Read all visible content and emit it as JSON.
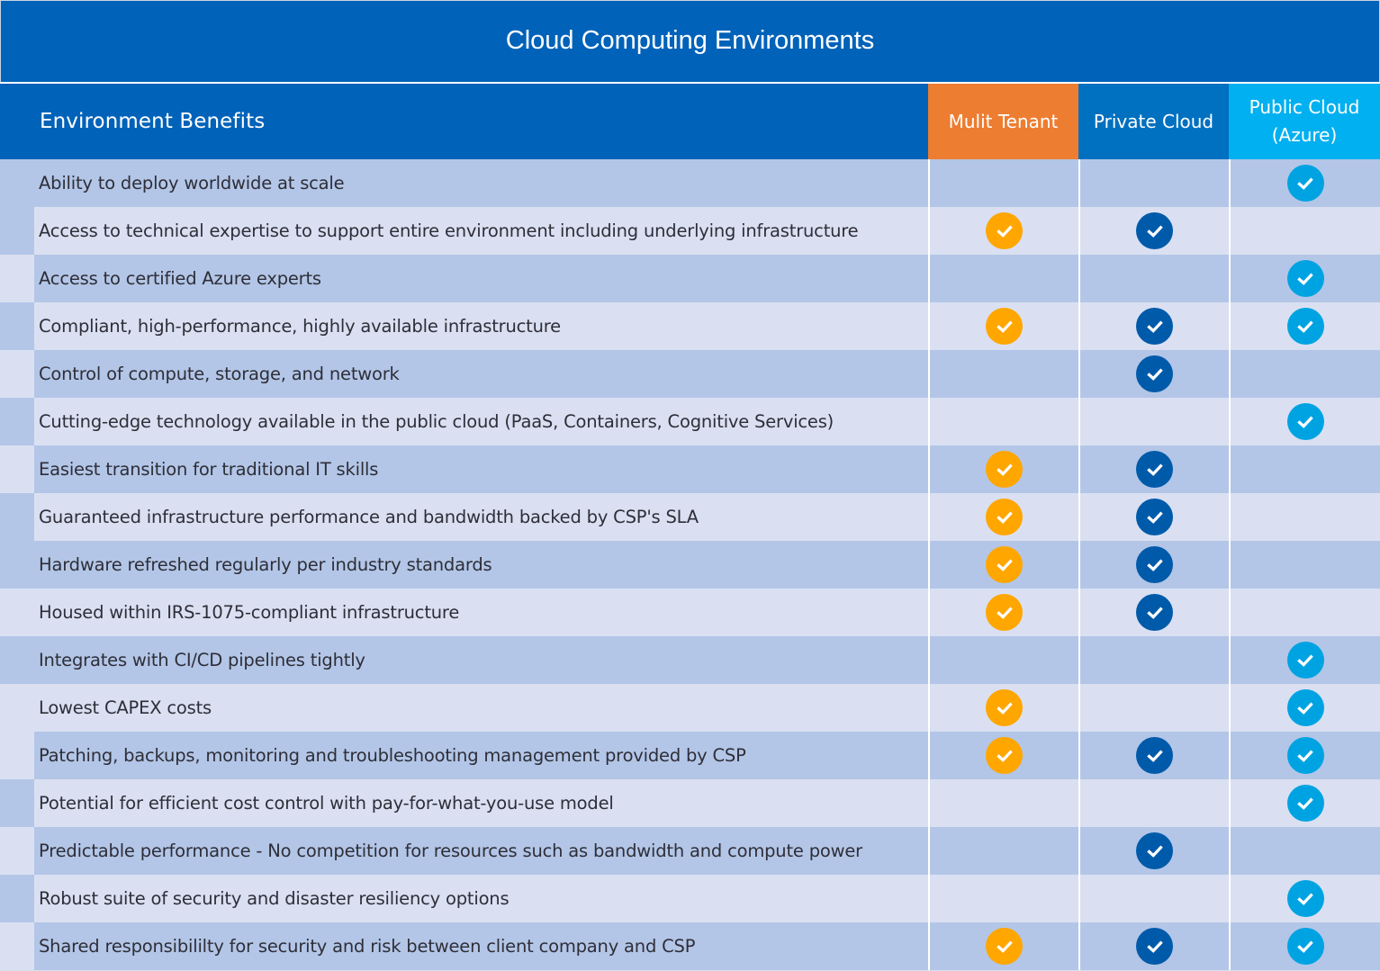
{
  "title": "Cloud Computing Environments",
  "header": {
    "benefits_label": "Environment Benefits",
    "columns": [
      {
        "label": "Mulit Tenant",
        "bg": "#ed7d31",
        "check_color": "#ffa600"
      },
      {
        "label": "Private Cloud",
        "bg": "#0070c0",
        "check_color": "#005aaa"
      },
      {
        "label": "Public Cloud (Azure)",
        "bg": "#00b0f0",
        "check_color": "#00a3e2"
      }
    ]
  },
  "colors": {
    "title_bg": "#0062b9",
    "row_dark": "#b3c6e7",
    "row_light": "#dae0f2",
    "text": "#2e2e38"
  },
  "rows": [
    {
      "benefit": "Ability to deploy worldwide at scale",
      "checks": [
        false,
        false,
        true
      ],
      "gutter": "dark"
    },
    {
      "benefit": "Access to technical expertise to support entire environment including underlying  infrastructure",
      "checks": [
        true,
        true,
        false
      ],
      "gutter": "dark"
    },
    {
      "benefit": "Access to certified Azure experts",
      "checks": [
        false,
        false,
        true
      ],
      "gutter": "light"
    },
    {
      "benefit": "Compliant, high-performance, highly available infrastructure",
      "checks": [
        true,
        true,
        true
      ],
      "gutter": "dark"
    },
    {
      "benefit": "Control of compute, storage, and network",
      "checks": [
        false,
        true,
        false
      ],
      "gutter": "light"
    },
    {
      "benefit": "Cutting-edge technology available in the public cloud (PaaS, Containers, Cognitive Services)",
      "checks": [
        false,
        false,
        true
      ],
      "gutter": "dark"
    },
    {
      "benefit": "Easiest transition for traditional IT skills",
      "checks": [
        true,
        true,
        false
      ],
      "gutter": "light"
    },
    {
      "benefit": "Guaranteed infrastructure performance and bandwidth backed by CSP's SLA",
      "checks": [
        true,
        true,
        false
      ],
      "gutter": "dark"
    },
    {
      "benefit": "Hardware refreshed regularly per industry standards",
      "checks": [
        true,
        true,
        false
      ],
      "gutter": "dark"
    },
    {
      "benefit": "Housed within IRS-1075-compliant infrastructure",
      "checks": [
        true,
        true,
        false
      ],
      "gutter": "light"
    },
    {
      "benefit": "Integrates with CI/CD pipelines tightly",
      "checks": [
        false,
        false,
        true
      ],
      "gutter": "dark"
    },
    {
      "benefit": "Lowest CAPEX costs",
      "checks": [
        true,
        false,
        true
      ],
      "gutter": "light"
    },
    {
      "benefit": "Patching, backups, monitoring and troubleshooting management provided by CSP",
      "checks": [
        true,
        true,
        true
      ],
      "gutter": "light"
    },
    {
      "benefit": "Potential for efficient cost control with pay-for-what-you-use model",
      "checks": [
        false,
        false,
        true
      ],
      "gutter": "dark"
    },
    {
      "benefit": "Predictable performance - No competition for resources such as bandwidth and compute power",
      "checks": [
        false,
        true,
        false
      ],
      "gutter": "light"
    },
    {
      "benefit": "Robust suite of security and disaster resiliency options",
      "checks": [
        false,
        false,
        true
      ],
      "gutter": "dark"
    },
    {
      "benefit": "Shared responsibililty for security and risk between client company and CSP",
      "checks": [
        true,
        true,
        true
      ],
      "gutter": "light"
    }
  ],
  "icons": {
    "check": "check-circle-icon"
  }
}
